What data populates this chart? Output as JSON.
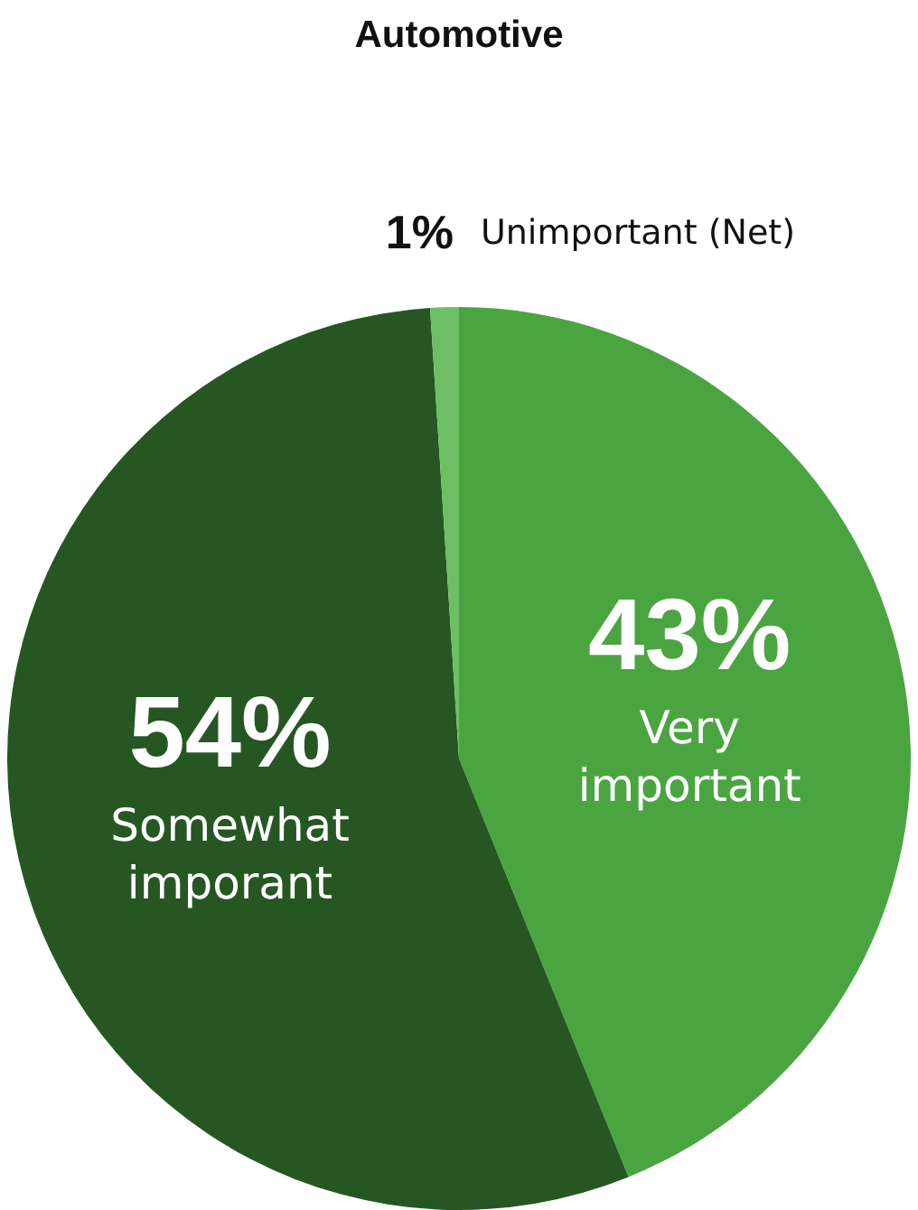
{
  "chart_data": {
    "type": "pie",
    "title": "Automotive",
    "categories": [
      "Very important",
      "Somewhat imporant",
      "Unimportant (Net)"
    ],
    "values": [
      43,
      54,
      1
    ],
    "colors": [
      "#4aa540",
      "#265723",
      "#6cbf63"
    ],
    "value_labels": [
      "43%",
      "54%",
      "1%"
    ],
    "legend": false
  }
}
